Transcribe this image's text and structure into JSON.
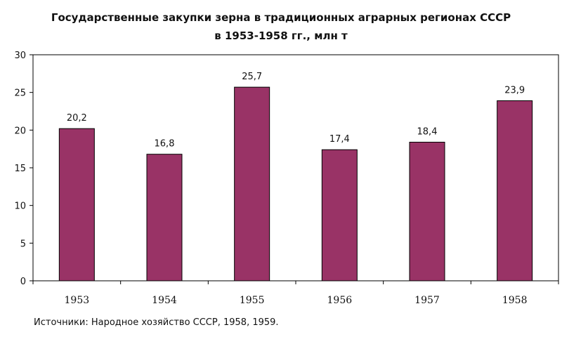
{
  "chart_data": {
    "type": "bar",
    "title": "Государственные закупки зерна в традиционных аграрных регионах СССР",
    "subtitle": "в 1953-1958 гг., млн т",
    "xlabel": "",
    "ylabel": "",
    "categories": [
      "1953",
      "1954",
      "1955",
      "1956",
      "1957",
      "1958"
    ],
    "values": [
      20.2,
      16.8,
      25.7,
      17.4,
      18.4,
      23.9
    ],
    "data_labels": [
      "20,2",
      "16,8",
      "25,7",
      "17,4",
      "18,4",
      "23,9"
    ],
    "yticks": [
      "0",
      "5",
      "10",
      "15",
      "20",
      "25",
      "30"
    ],
    "ylim": [
      0,
      30
    ],
    "grid": false,
    "legend": "none",
    "bar_color": "#993366"
  },
  "source": "Источники: Народное хозяйство СССР, 1958, 1959."
}
